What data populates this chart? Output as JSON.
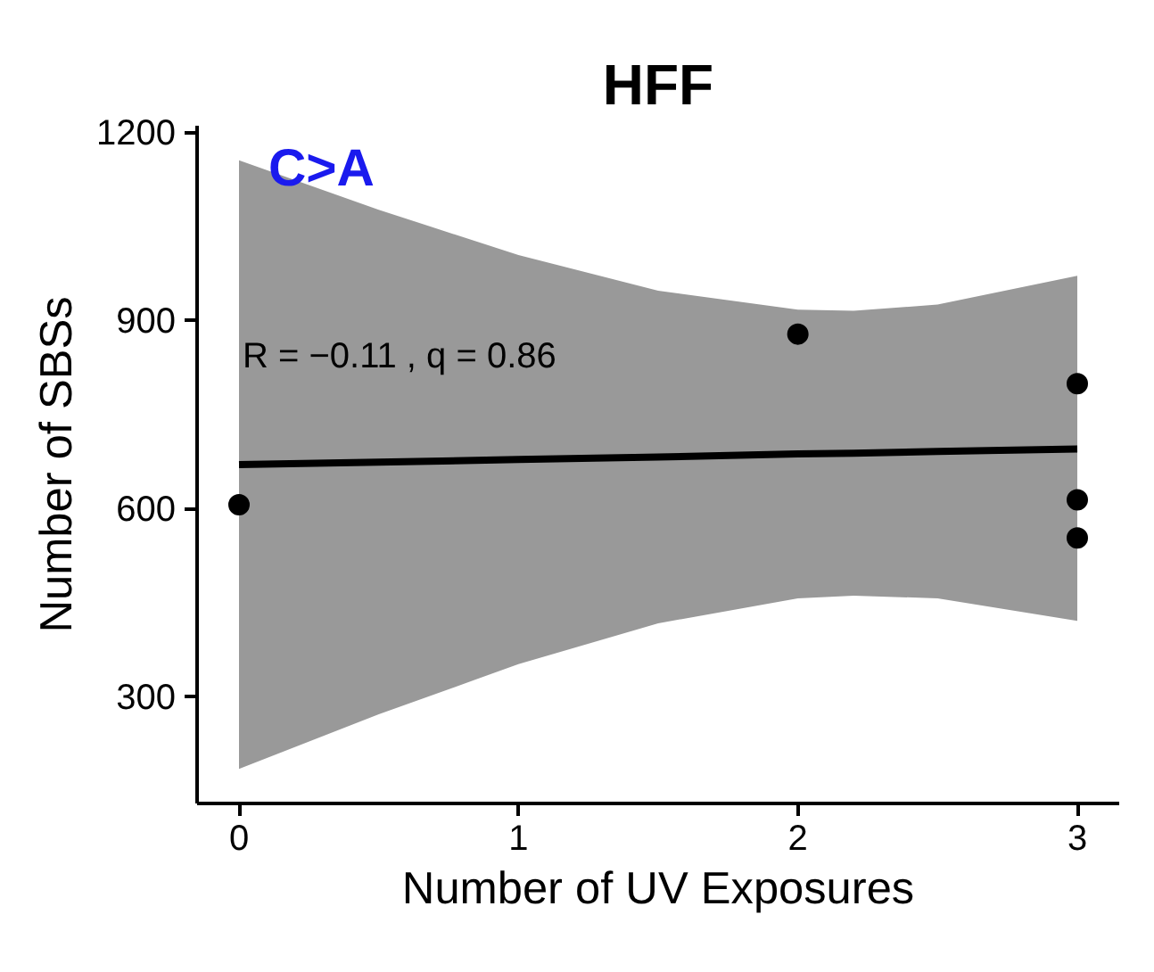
{
  "chart_data": {
    "type": "scatter",
    "title": "HFF",
    "xlabel": "Number of UV Exposures",
    "ylabel": "Number of SBSs",
    "xlim": [
      -0.15,
      3.15
    ],
    "xticks": [
      0,
      1,
      2,
      3
    ],
    "ylim": [
      130,
      1210
    ],
    "yticks": [
      300,
      600,
      900,
      1200
    ],
    "grid": false,
    "marker": "circle",
    "annotations": [
      "C>A",
      {
        "text": "R = −0.11 , q = 0.86",
        "x": 0,
        "y": 810
      }
    ],
    "series": [
      {
        "color": "#000000",
        "x": [
          0,
          2,
          3,
          3,
          3
        ],
        "values": [
          606,
          878,
          799,
          614,
          553
        ]
      },
      {
        "type": "line",
        "color": "#000000",
        "marker": "none",
        "line_style": "solid",
        "x": [
          0,
          0.5,
          1,
          1.5,
          2,
          2.2,
          2.5,
          3
        ],
        "values": [
          670,
          674,
          678,
          682,
          687,
          688,
          691,
          695
        ],
        "lower": [
          185,
          272,
          352,
          417,
          457,
          461,
          457,
          421
        ],
        "upper": [
          1155,
          1076,
          1004,
          947,
          917,
          915,
          925,
          971
        ]
      }
    ]
  }
}
